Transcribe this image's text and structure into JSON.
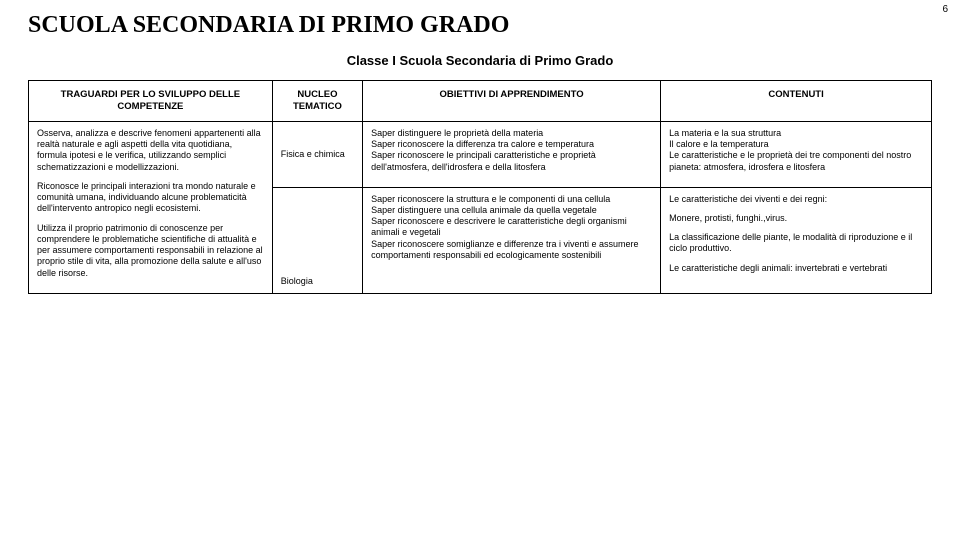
{
  "pageNumber": "6",
  "title": "SCUOLA SECONDARIA DI PRIMO GRADO",
  "subtitle": "Classe I Scuola Secondaria di Primo Grado",
  "headers": {
    "col1": "TRAGUARDI PER LO SVILUPPO DELLE COMPETENZE",
    "col2": "NUCLEO TEMATICO",
    "col3": "OBIETTIVI DI APPRENDIMENTO",
    "col4": "CONTENUTI"
  },
  "competenze": {
    "p1": "Osserva, analizza e descrive fenomeni appartenenti alla realtà naturale e agli aspetti della vita quotidiana, formula ipotesi e le verifica, utilizzando semplici schematizzazioni e modellizzazioni.",
    "p2": "Riconosce le principali interazioni tra mondo naturale e comunità umana, individuando alcune problematicità dell'intervento antropico negli ecosistemi.",
    "p3": "Utilizza il proprio patrimonio di conoscenze per comprendere le problematiche scientifiche di attualità e per assumere comportamenti responsabili in relazione al proprio stile di vita, alla promozione della salute e all'uso delle risorse."
  },
  "row1": {
    "nucleo": "Fisica e chimica",
    "obj": {
      "l1": "Saper distinguere le proprietà della materia",
      "l2": "Saper riconoscere la differenza tra calore e temperatura",
      "l3": "Saper riconoscere le principali caratteristiche e proprietà dell'atmosfera, dell'idrosfera e della litosfera"
    },
    "cont": {
      "l1": "La materia  e la sua struttura",
      "l2": "Il calore e la temperatura",
      "l3": "Le caratteristiche e le proprietà dei tre componenti del nostro pianeta: atmosfera, idrosfera e litosfera"
    }
  },
  "row2": {
    "nucleo": "Biologia",
    "obj": {
      "l1": "Saper riconoscere la struttura e le componenti di una cellula",
      "l2": "Saper distinguere una cellula animale da quella vegetale",
      "l3": "Saper riconoscere e descrivere le caratteristiche degli organismi animali e vegetali",
      "l4": "Saper riconoscere somiglianze e differenze tra i viventi e assumere comportamenti responsabili ed ecologicamente sostenibili"
    },
    "cont": {
      "l1": "Le caratteristiche dei viventi e dei regni:",
      "l2": "Monere, protisti, funghi.,virus.",
      "l3": "La classificazione delle piante, le modalità di riproduzione e il ciclo produttivo.",
      "l4": "Le caratteristiche degli animali: invertebrati e vertebrati"
    }
  }
}
